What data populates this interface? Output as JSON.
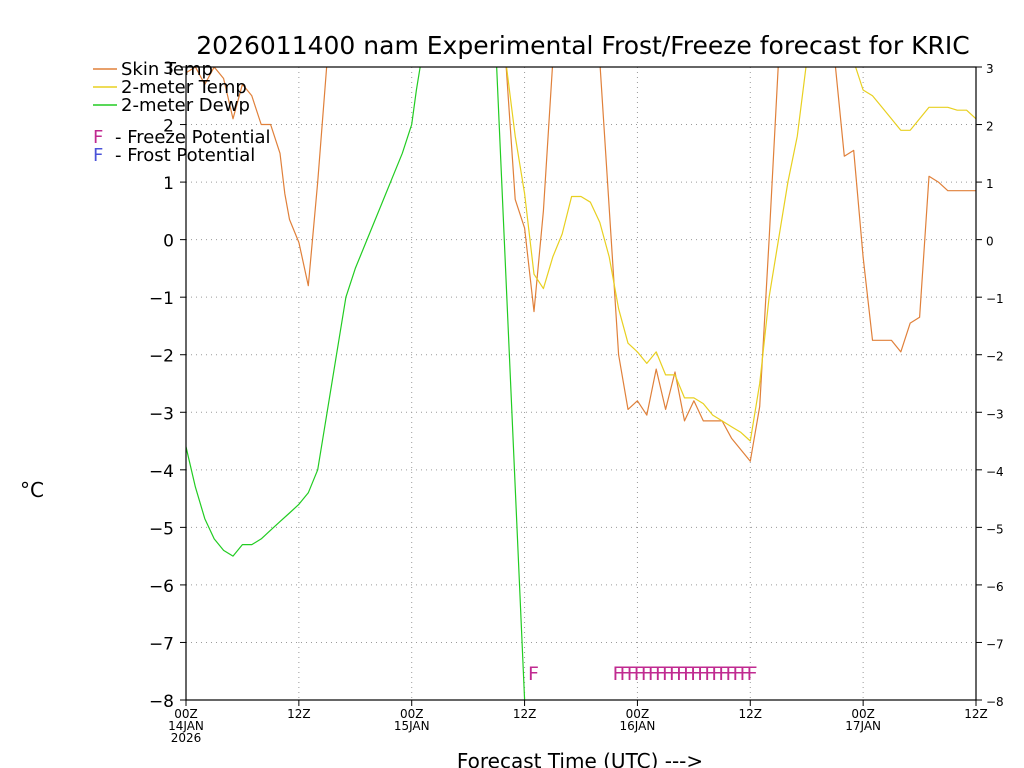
{
  "chart_data": {
    "type": "line",
    "title": "2026011400 nam Experimental Frost/Freeze forecast for KRIC",
    "xlabel": "Forecast Time (UTC) --->",
    "ylabel": "°C",
    "ylim": [
      -8,
      3
    ],
    "xlim_hours": [
      0,
      84
    ],
    "grid": true,
    "y_ticks": [
      "3",
      "2",
      "1",
      "0",
      "-1",
      "-2",
      "-3",
      "-4",
      "-5",
      "-6",
      "-7",
      "-8"
    ],
    "x_ticks": [
      {
        "hour": 0,
        "label": "00Z",
        "sub": "14JAN",
        "sub2": "2026"
      },
      {
        "hour": 12,
        "label": "12Z",
        "sub": "",
        "sub2": ""
      },
      {
        "hour": 24,
        "label": "00Z",
        "sub": "15JAN",
        "sub2": ""
      },
      {
        "hour": 36,
        "label": "12Z",
        "sub": "",
        "sub2": ""
      },
      {
        "hour": 48,
        "label": "00Z",
        "sub": "16JAN",
        "sub2": ""
      },
      {
        "hour": 60,
        "label": "12Z",
        "sub": "",
        "sub2": ""
      },
      {
        "hour": 72,
        "label": "00Z",
        "sub": "17JAN",
        "sub2": ""
      },
      {
        "hour": 84,
        "label": "12Z",
        "sub": "",
        "sub2": ""
      }
    ],
    "legend": {
      "placement": "top-left",
      "entries": [
        {
          "name": "Skin Temp",
          "color": "#e0803a"
        },
        {
          "name": "2-meter Temp",
          "color": "#e8d020"
        },
        {
          "name": "2-meter Dewp",
          "color": "#22cc22"
        }
      ],
      "markers": [
        {
          "symbol": "F",
          "text": "- Freeze Potential",
          "color": "#c02a90"
        },
        {
          "symbol": "F",
          "text": "- Frost Potential",
          "color": "#4a52d8"
        }
      ]
    },
    "series": [
      {
        "name": "Skin Temp",
        "color": "#e0803a",
        "points": [
          [
            0,
            2.9
          ],
          [
            1,
            3.0
          ],
          [
            2,
            2.7
          ],
          [
            3,
            3.0
          ],
          [
            4,
            2.8
          ],
          [
            5,
            2.1
          ],
          [
            6,
            2.7
          ],
          [
            7,
            2.5
          ],
          [
            8,
            2.0
          ],
          [
            9,
            2.0
          ],
          [
            10,
            1.5
          ],
          [
            10.5,
            0.8
          ],
          [
            11,
            0.35
          ],
          [
            12,
            -0.05
          ],
          [
            13,
            -0.8
          ],
          [
            14,
            1.0
          ],
          [
            15,
            3.1
          ],
          [
            34,
            3.1
          ],
          [
            35,
            0.7
          ],
          [
            36,
            0.2
          ],
          [
            37,
            -1.25
          ],
          [
            38,
            0.5
          ],
          [
            39,
            3.1
          ],
          [
            44,
            3.1
          ],
          [
            46,
            -2.0
          ],
          [
            47,
            -2.95
          ],
          [
            48,
            -2.8
          ],
          [
            49,
            -3.05
          ],
          [
            50,
            -2.25
          ],
          [
            51,
            -2.95
          ],
          [
            52,
            -2.3
          ],
          [
            53,
            -3.15
          ],
          [
            54,
            -2.8
          ],
          [
            55,
            -3.15
          ],
          [
            56,
            -3.15
          ],
          [
            57,
            -3.15
          ],
          [
            58,
            -3.45
          ],
          [
            59,
            -3.65
          ],
          [
            60,
            -3.85
          ],
          [
            61,
            -2.9
          ],
          [
            62,
            0.0
          ],
          [
            63,
            3.1
          ],
          [
            69,
            3.1
          ],
          [
            70,
            1.45
          ],
          [
            71,
            1.55
          ],
          [
            72,
            -0.3
          ],
          [
            73,
            -1.75
          ],
          [
            74,
            -1.75
          ],
          [
            75,
            -1.75
          ],
          [
            76,
            -1.95
          ],
          [
            77,
            -1.45
          ],
          [
            78,
            -1.35
          ],
          [
            79,
            1.1
          ],
          [
            80,
            1.0
          ],
          [
            81,
            0.85
          ],
          [
            82,
            0.85
          ],
          [
            83,
            0.85
          ],
          [
            84,
            0.85
          ]
        ]
      },
      {
        "name": "2-meter Temp",
        "color": "#e8d020",
        "points": [
          [
            34,
            3.1
          ],
          [
            35,
            1.8
          ],
          [
            36,
            0.8
          ],
          [
            37,
            -0.6
          ],
          [
            38,
            -0.85
          ],
          [
            39,
            -0.3
          ],
          [
            40,
            0.1
          ],
          [
            41,
            0.75
          ],
          [
            42,
            0.75
          ],
          [
            43,
            0.65
          ],
          [
            44,
            0.3
          ],
          [
            45,
            -0.3
          ],
          [
            46,
            -1.2
          ],
          [
            47,
            -1.8
          ],
          [
            48,
            -1.95
          ],
          [
            49,
            -2.15
          ],
          [
            50,
            -1.95
          ],
          [
            51,
            -2.35
          ],
          [
            52,
            -2.35
          ],
          [
            53,
            -2.75
          ],
          [
            54,
            -2.75
          ],
          [
            55,
            -2.85
          ],
          [
            56,
            -3.05
          ],
          [
            57,
            -3.15
          ],
          [
            58,
            -3.25
          ],
          [
            59,
            -3.35
          ],
          [
            60,
            -3.5
          ],
          [
            61,
            -2.5
          ],
          [
            62,
            -1.0
          ],
          [
            63,
            0.0
          ],
          [
            64,
            1.0
          ],
          [
            65,
            1.8
          ],
          [
            66,
            3.1
          ],
          [
            71,
            3.1
          ],
          [
            72,
            2.6
          ],
          [
            73,
            2.5
          ],
          [
            74,
            2.3
          ],
          [
            75,
            2.1
          ],
          [
            76,
            1.9
          ],
          [
            77,
            1.9
          ],
          [
            78,
            2.1
          ],
          [
            79,
            2.3
          ],
          [
            80,
            2.3
          ],
          [
            81,
            2.3
          ],
          [
            82,
            2.25
          ],
          [
            83,
            2.25
          ],
          [
            84,
            2.1
          ]
        ]
      },
      {
        "name": "2-meter Dewp",
        "color": "#22cc22",
        "points": [
          [
            0,
            -3.6
          ],
          [
            1,
            -4.3
          ],
          [
            2,
            -4.85
          ],
          [
            3,
            -5.2
          ],
          [
            4,
            -5.4
          ],
          [
            5,
            -5.5
          ],
          [
            6,
            -5.3
          ],
          [
            7,
            -5.3
          ],
          [
            8,
            -5.2
          ],
          [
            9,
            -5.05
          ],
          [
            10,
            -4.9
          ],
          [
            11,
            -4.75
          ],
          [
            12,
            -4.6
          ],
          [
            13,
            -4.4
          ],
          [
            14,
            -4.0
          ],
          [
            15,
            -3.0
          ],
          [
            16,
            -2.0
          ],
          [
            17,
            -1.0
          ],
          [
            18,
            -0.5
          ],
          [
            19,
            -0.1
          ],
          [
            20,
            0.3
          ],
          [
            21,
            0.7
          ],
          [
            22,
            1.1
          ],
          [
            23,
            1.5
          ],
          [
            24,
            2.0
          ],
          [
            24.5,
            2.6
          ],
          [
            25,
            3.1
          ],
          [
            33,
            3.1
          ],
          [
            36,
            -8.0
          ]
        ]
      }
    ],
    "freeze_potential_marks": {
      "symbol": "F",
      "color": "#c02a90",
      "level": -7.5,
      "hours": [
        37,
        46,
        46.75,
        47.5,
        48.25,
        49,
        49.75,
        50.5,
        51.25,
        52,
        52.75,
        53.5,
        54.25,
        55,
        55.75,
        56.5,
        57.25,
        58,
        58.75,
        59.5,
        60.25
      ]
    },
    "frost_potential_marks": {
      "symbol": "F",
      "color": "#4a52d8",
      "level": -7.5,
      "hours": []
    }
  }
}
